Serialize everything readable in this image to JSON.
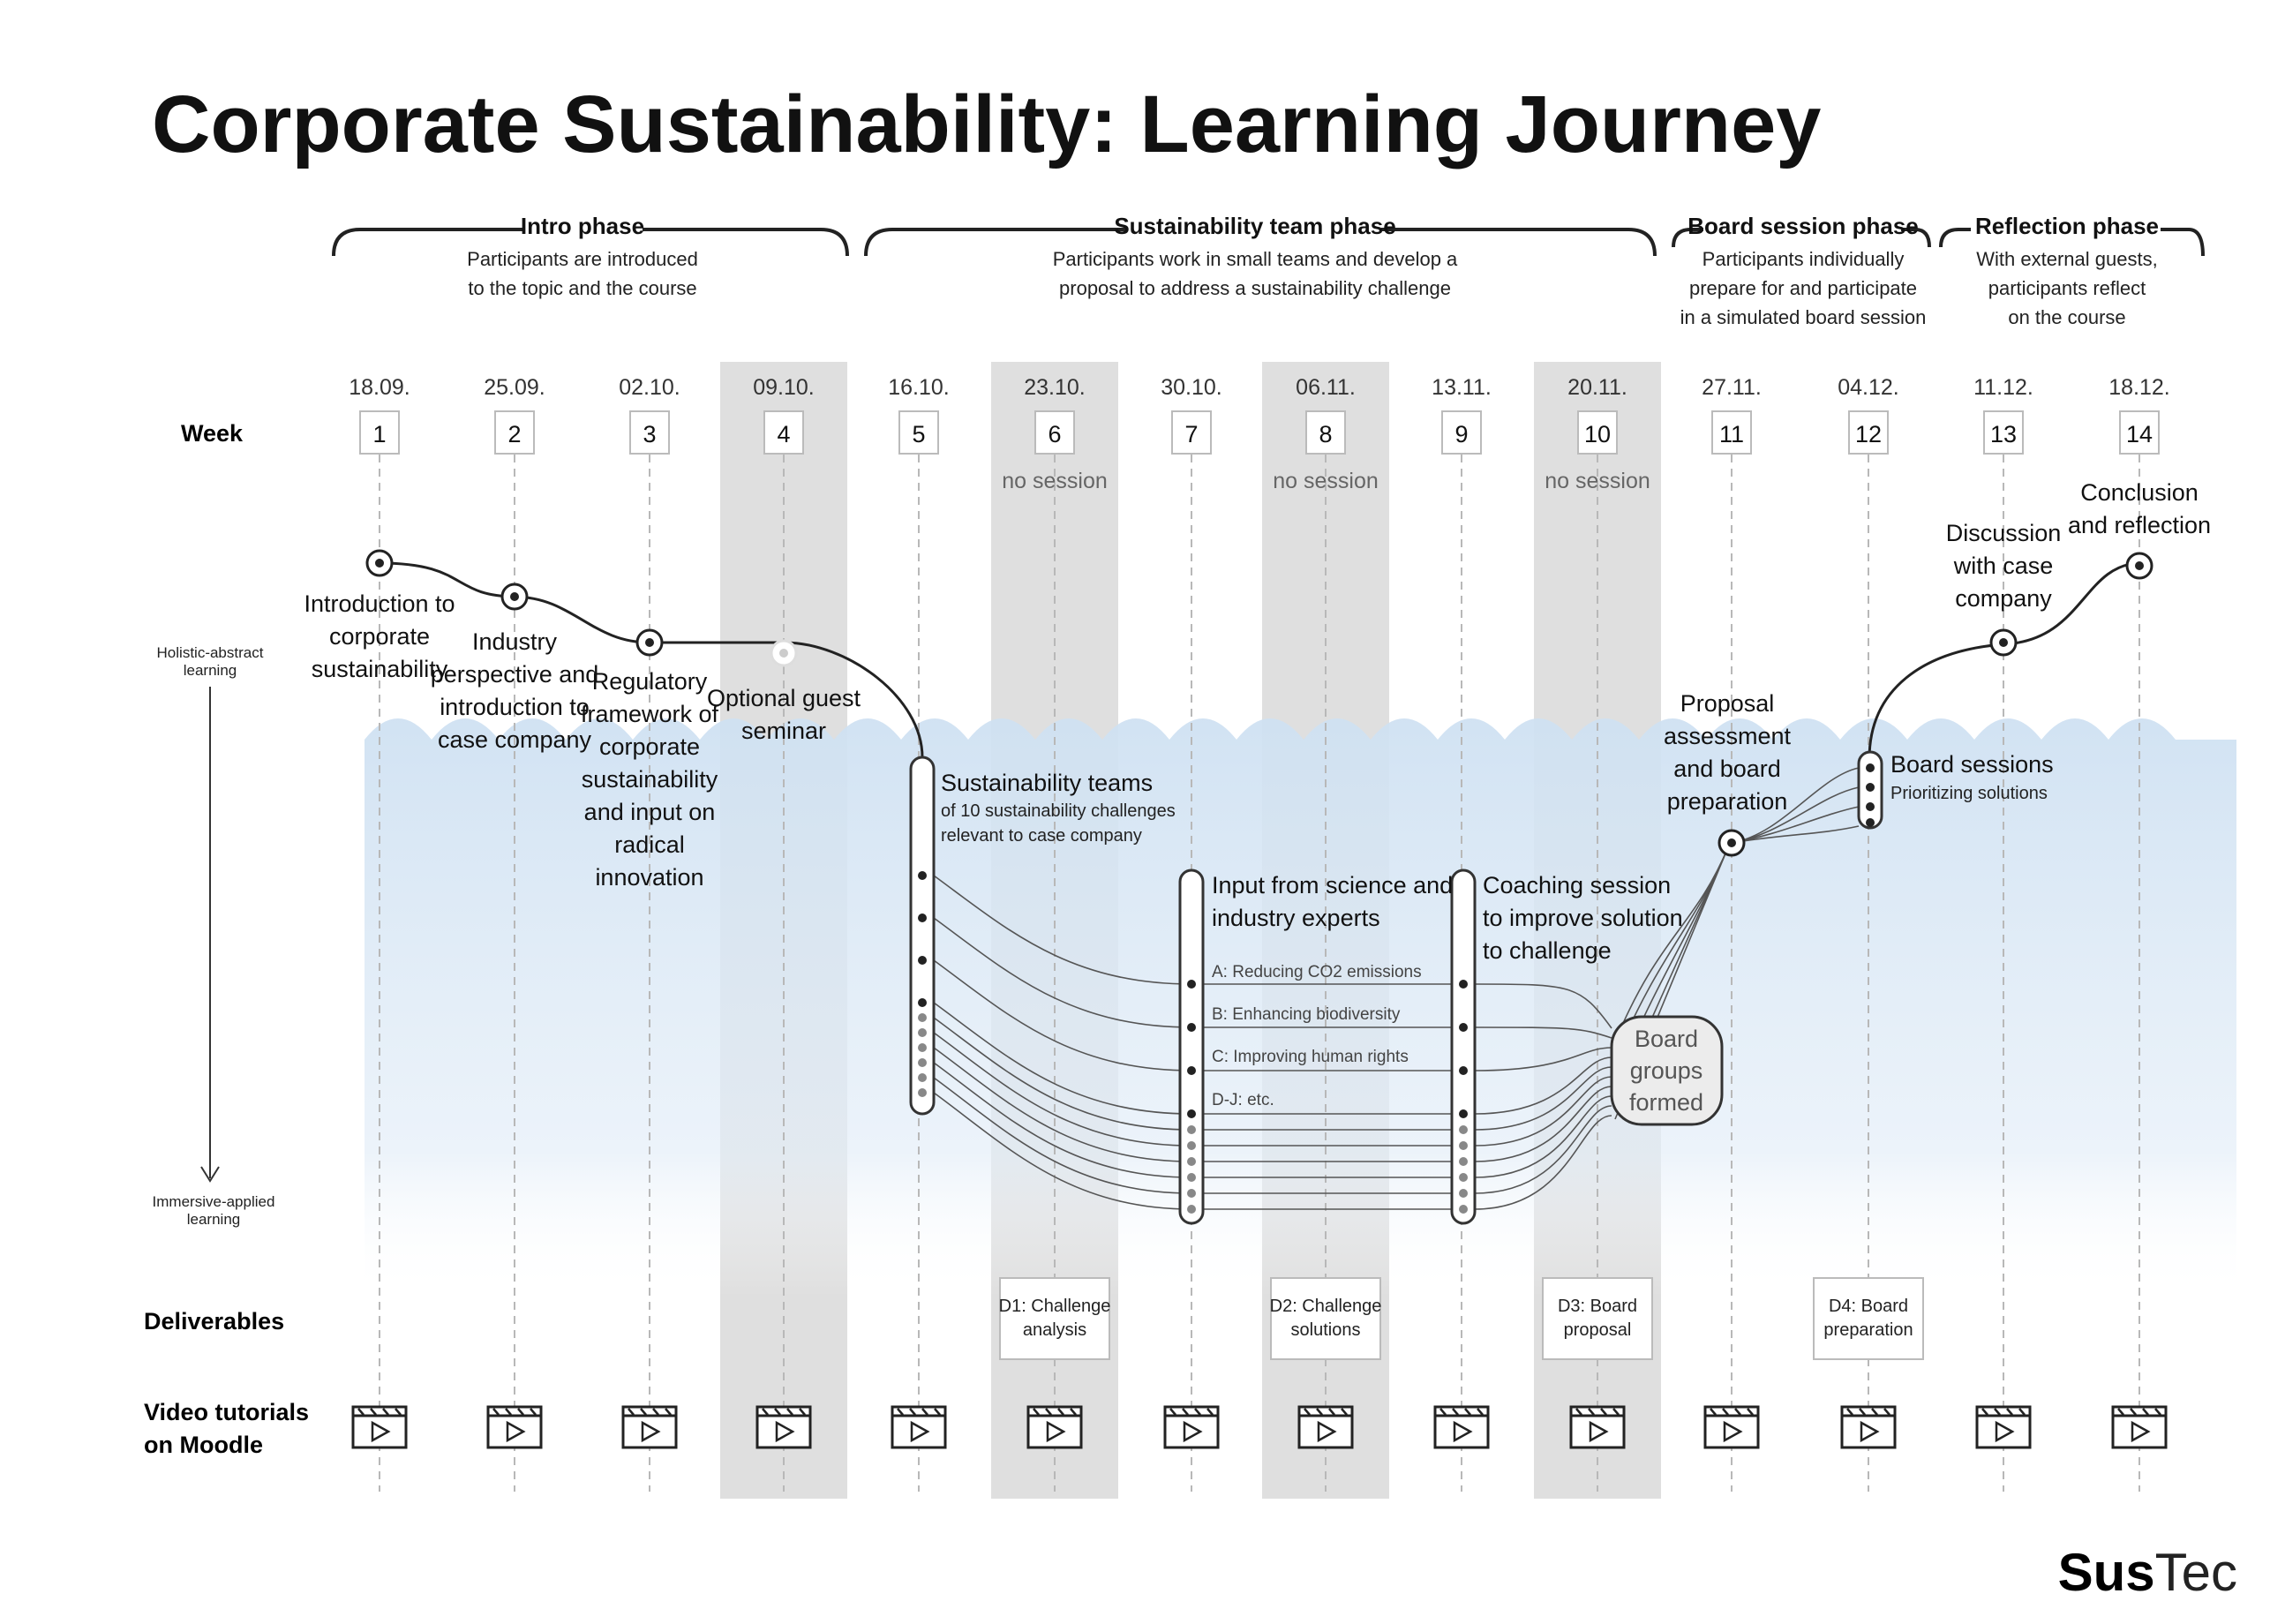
{
  "title": "Corporate Sustainability: Learning Journey",
  "brand": {
    "bold": "Sus",
    "light": "Tec"
  },
  "phases": [
    {
      "name": "Intro phase",
      "description": [
        "Participants are introduced",
        "to the topic and the course"
      ]
    },
    {
      "name": "Sustainability team phase",
      "description": [
        "Participants work in small teams and develop a",
        "proposal to address a sustainability challenge"
      ]
    },
    {
      "name": "Board session phase",
      "description": [
        "Participants individually",
        "prepare for and participate",
        "in a simulated board session"
      ]
    },
    {
      "name": "Reflection phase",
      "description": [
        "With external guests,",
        "participants reflect",
        "on the course"
      ]
    }
  ],
  "row_labels": {
    "week": "Week",
    "holistic": [
      "Holistic-abstract",
      "learning"
    ],
    "immersive": [
      "Immersive-applied",
      "learning"
    ],
    "deliverables": "Deliverables",
    "video": [
      "Video tutorials",
      "on Moodle"
    ]
  },
  "weeks": [
    {
      "num": "1",
      "date": "18.09."
    },
    {
      "num": "2",
      "date": "25.09."
    },
    {
      "num": "3",
      "date": "02.10."
    },
    {
      "num": "4",
      "date": "09.10."
    },
    {
      "num": "5",
      "date": "16.10."
    },
    {
      "num": "6",
      "date": "23.10."
    },
    {
      "num": "7",
      "date": "30.10."
    },
    {
      "num": "8",
      "date": "06.11."
    },
    {
      "num": "9",
      "date": "13.11."
    },
    {
      "num": "10",
      "date": "20.11."
    },
    {
      "num": "11",
      "date": "27.11."
    },
    {
      "num": "12",
      "date": "04.12."
    },
    {
      "num": "13",
      "date": "11.12."
    },
    {
      "num": "14",
      "date": "18.12."
    }
  ],
  "no_session_label": "no session",
  "sessions": {
    "s1": [
      "Introduction to",
      "corporate",
      "sustainability"
    ],
    "s2": [
      "Industry",
      "perspective and",
      "introduction to",
      "case company"
    ],
    "s3": [
      "Regulatory",
      "framework of",
      "corporate",
      "sustainability",
      "and input on",
      "radical",
      "innovation"
    ],
    "s4": [
      "Optional guest",
      "seminar"
    ],
    "s5_title": "Sustainability teams",
    "s5_sub": [
      "of 10 sustainability challenges",
      "relevant to case company"
    ],
    "s7": [
      "Input from science and",
      "industry experts"
    ],
    "s9": [
      "Coaching session",
      "to improve solution",
      "to challenge"
    ],
    "challenges": [
      "A: Reducing CO2 emissions",
      "B: Enhancing biodiversity",
      "C: Improving human rights",
      "D-J: etc."
    ],
    "board_groups": [
      "Board",
      "groups",
      "formed"
    ],
    "s11": [
      "Proposal",
      "assessment",
      "and board",
      "preparation"
    ],
    "s12_title": "Board sessions",
    "s12_sub": "Prioritizing solutions",
    "s13": [
      "Discussion",
      "with case",
      "company"
    ],
    "s14": [
      "Conclusion",
      "and reflection"
    ]
  },
  "deliverables": [
    {
      "week": 6,
      "lines": [
        "D1: Challenge",
        "analysis"
      ]
    },
    {
      "week": 8,
      "lines": [
        "D2: Challenge",
        "solutions"
      ]
    },
    {
      "week": 10,
      "lines": [
        "D3: Board",
        "proposal"
      ]
    },
    {
      "week": 12,
      "lines": [
        "D4: Board",
        "preparation"
      ]
    }
  ],
  "colors": {
    "ink": "#111111",
    "grey_band": "#dcdcdc",
    "water": "#cfe2f3",
    "line": "#555555"
  }
}
